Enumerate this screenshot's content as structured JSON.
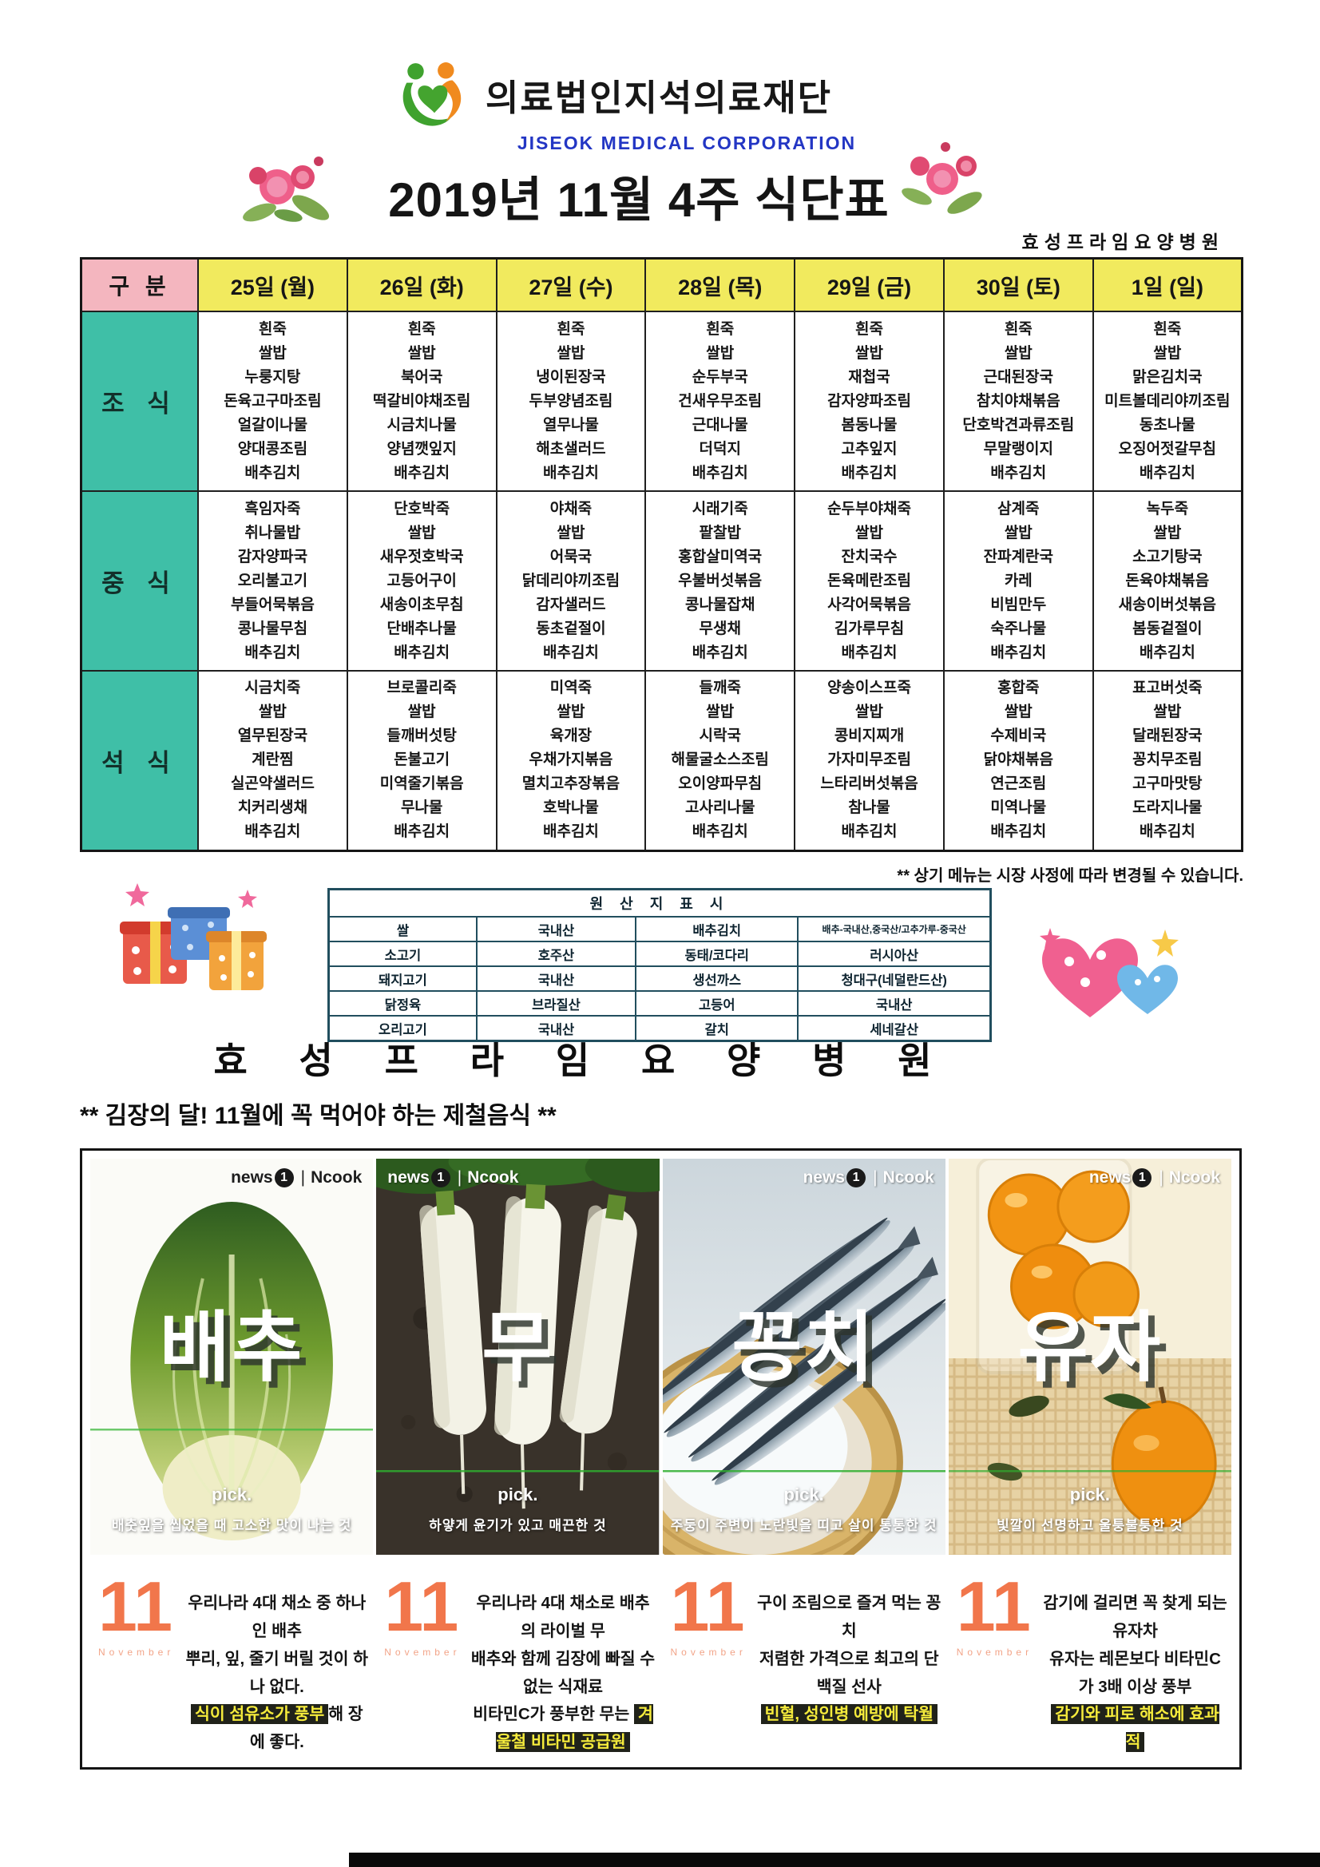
{
  "header": {
    "org_name": "의료법인지석의료재단",
    "org_name_en": "JISEOK MEDICAL CORPORATION",
    "title": "2019년 11월 4주 식단표",
    "hospital_name": "효성프라임요양병원"
  },
  "menu_table": {
    "corner_label": "구 분",
    "days": [
      "25일 (월)",
      "26일 (화)",
      "27일 (수)",
      "28일 (목)",
      "29일 (금)",
      "30일 (토)",
      "1일 (일)"
    ],
    "meals": [
      {
        "label": "조 식",
        "columns": [
          [
            "흰죽",
            "쌀밥",
            "누룽지탕",
            "돈육고구마조림",
            "얼갈이나물",
            "양대콩조림",
            "배추김치"
          ],
          [
            "흰죽",
            "쌀밥",
            "북어국",
            "떡갈비야채조림",
            "시금치나물",
            "양념깻잎지",
            "배추김치"
          ],
          [
            "흰죽",
            "쌀밥",
            "냉이된장국",
            "두부양념조림",
            "열무나물",
            "해초샐러드",
            "배추김치"
          ],
          [
            "흰죽",
            "쌀밥",
            "순두부국",
            "건새우무조림",
            "근대나물",
            "더덕지",
            "배추김치"
          ],
          [
            "흰죽",
            "쌀밥",
            "재첩국",
            "감자양파조림",
            "봄동나물",
            "고추잎지",
            "배추김치"
          ],
          [
            "흰죽",
            "쌀밥",
            "근대된장국",
            "참치야채볶음",
            "단호박견과류조림",
            "무말랭이지",
            "배추김치"
          ],
          [
            "흰죽",
            "쌀밥",
            "맑은김치국",
            "미트볼데리야끼조림",
            "동초나물",
            "오징어젓갈무침",
            "배추김치"
          ]
        ]
      },
      {
        "label": "중 식",
        "columns": [
          [
            "흑임자죽",
            "취나물밥",
            "감자양파국",
            "오리불고기",
            "부들어묵볶음",
            "콩나물무침",
            "배추김치"
          ],
          [
            "단호박죽",
            "쌀밥",
            "새우젓호박국",
            "고등어구이",
            "새송이초무침",
            "단배추나물",
            "배추김치"
          ],
          [
            "야채죽",
            "쌀밥",
            "어묵국",
            "닭데리야끼조림",
            "감자샐러드",
            "동초겉절이",
            "배추김치"
          ],
          [
            "시래기죽",
            "팥찰밥",
            "홍합살미역국",
            "우불버섯볶음",
            "콩나물잡채",
            "무생채",
            "배추김치"
          ],
          [
            "순두부야채죽",
            "쌀밥",
            "잔치국수",
            "돈육메란조림",
            "사각어묵볶음",
            "김가루무침",
            "배추김치"
          ],
          [
            "삼계죽",
            "쌀밥",
            "잔파계란국",
            "카레",
            "비빔만두",
            "숙주나물",
            "배추김치"
          ],
          [
            "녹두죽",
            "쌀밥",
            "소고기탕국",
            "돈육야채볶음",
            "새송이버섯볶음",
            "봄동겉절이",
            "배추김치"
          ]
        ]
      },
      {
        "label": "석 식",
        "columns": [
          [
            "시금치죽",
            "쌀밥",
            "열무된장국",
            "계란찜",
            "실곤약샐러드",
            "치커리생채",
            "배추김치"
          ],
          [
            "브로콜리죽",
            "쌀밥",
            "들깨버섯탕",
            "돈불고기",
            "미역줄기볶음",
            "무나물",
            "배추김치"
          ],
          [
            "미역죽",
            "쌀밥",
            "육개장",
            "우채가지볶음",
            "멸치고추장볶음",
            "호박나물",
            "배추김치"
          ],
          [
            "들깨죽",
            "쌀밥",
            "시락국",
            "해물굴소스조림",
            "오이양파무침",
            "고사리나물",
            "배추김치"
          ],
          [
            "양송이스프죽",
            "쌀밥",
            "콩비지찌개",
            "가자미무조림",
            "느타리버섯볶음",
            "참나물",
            "배추김치"
          ],
          [
            "홍합죽",
            "쌀밥",
            "수제비국",
            "닭야채볶음",
            "연근조림",
            "미역나물",
            "배추김치"
          ],
          [
            "표고버섯죽",
            "쌀밥",
            "달래된장국",
            "꽁치무조림",
            "고구마맛탕",
            "도라지나물",
            "배추김치"
          ]
        ]
      }
    ]
  },
  "note": "** 상기 메뉴는 시장 사정에 따라 변경될 수 있습니다.",
  "origin_table": {
    "title": "원 산 지 표 시",
    "rows": [
      [
        "쌀",
        "국내산",
        "배추김치",
        "배추-국내산,중국산/고추가루-중국산"
      ],
      [
        "소고기",
        "호주산",
        "동태/코다리",
        "러시아산"
      ],
      [
        "돼지고기",
        "국내산",
        "생선까스",
        "청대구(네덜란드산)"
      ],
      [
        "닭정육",
        "브라질산",
        "고등어",
        "국내산"
      ],
      [
        "오리고기",
        "국내산",
        "갈치",
        "세네갈산"
      ]
    ]
  },
  "footer": {
    "hospital_name_spaced": "효 성 프 라 임 요 양 병 원",
    "season_title": "** 김장의 달! 11월에 꼭 먹어야 하는 제철음식 **"
  },
  "food_common": {
    "month": "11",
    "month_label": "November",
    "pick_label": "pick.",
    "brand": {
      "news": "news",
      "one": "1",
      "cook": "Ncook"
    }
  },
  "food_panels": [
    {
      "name": "배추",
      "photo": "cabbage",
      "image_caption": "배춧잎을 씹었을 때 고소한 맛이 나는 것",
      "desc_lines": [
        [
          {
            "t": "우리나라 4대 채소 중 하나인 배추"
          }
        ],
        [
          {
            "t": "뿌리, 잎, 줄기 버릴 것이 하나 없다."
          }
        ],
        [
          {
            "t": "식이 섬유소가 풍부",
            "hl": true
          },
          {
            "t": "해 장에 좋다."
          }
        ]
      ]
    },
    {
      "name": "무",
      "photo": "radish",
      "image_caption": "하얗게 윤기가 있고 매끈한 것",
      "desc_lines": [
        [
          {
            "t": "우리나라 4대 채소로 배추의 라이벌 무"
          }
        ],
        [
          {
            "t": "배추와 함께 김장에 빠질 수 없는 식재료"
          }
        ],
        [
          {
            "t": "비타민C가 풍부한 무는 "
          },
          {
            "t": "겨울철 비타민 공급원",
            "hl": true
          }
        ]
      ]
    },
    {
      "name": "꽁치",
      "photo": "fish",
      "image_caption": "주둥이 주변이 노란빛을 띠고 살이 통통한 것",
      "desc_lines": [
        [
          {
            "t": "구이 조림으로 즐겨 먹는 꽁치"
          }
        ],
        [
          {
            "t": "저렴한 가격으로 최고의 단백질 선사"
          }
        ],
        [
          {
            "t": "빈혈, 성인병 예방에 탁월",
            "hl": true
          }
        ]
      ]
    },
    {
      "name": "유자",
      "photo": "citrus",
      "image_caption": "빛깔이 선명하고 울퉁불퉁한 것",
      "desc_lines": [
        [
          {
            "t": "감기에 걸리면 꼭 찾게 되는 유자차"
          }
        ],
        [
          {
            "t": "유자는 레몬보다 비타민C가 3배 이상 풍부"
          }
        ],
        [
          {
            "t": "감기와 피로 해소에 효과적",
            "hl": true
          }
        ]
      ]
    }
  ]
}
